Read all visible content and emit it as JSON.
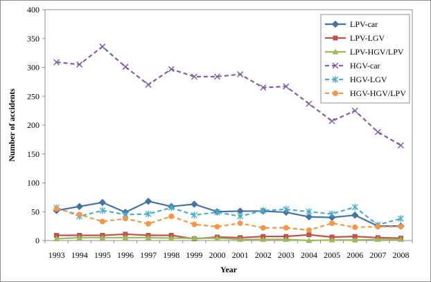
{
  "chart_data": {
    "type": "line",
    "xlabel": "Year",
    "ylabel": "Number of accidents",
    "x": [
      1993,
      1994,
      1995,
      1996,
      1997,
      1998,
      1999,
      2000,
      2001,
      2002,
      2003,
      2004,
      2005,
      2006,
      2007,
      2008
    ],
    "ylim": [
      0,
      400
    ],
    "yticks": [
      0,
      50,
      100,
      150,
      200,
      250,
      300,
      350,
      400
    ],
    "grid": false,
    "legend_position": "top-right",
    "series": [
      {
        "name": "LPV-car",
        "color": "#4472a4",
        "marker": "diamond",
        "dashed": false,
        "values": [
          52,
          59,
          66,
          49,
          68,
          59,
          63,
          50,
          51,
          51,
          49,
          41,
          40,
          44,
          25,
          25
        ]
      },
      {
        "name": "LPV-LGV",
        "color": "#c0504d",
        "marker": "square",
        "dashed": false,
        "values": [
          9,
          9,
          9,
          11,
          9,
          9,
          3,
          6,
          5,
          7,
          7,
          10,
          6,
          7,
          5,
          4
        ]
      },
      {
        "name": "LPV-HGV/LPV",
        "color": "#9bbb59",
        "marker": "triangle",
        "dashed": false,
        "values": [
          3,
          5,
          5,
          5,
          5,
          4,
          4,
          4,
          2,
          2,
          2,
          0,
          1,
          1,
          2,
          2
        ]
      },
      {
        "name": "HGV-car",
        "color": "#7f5fa2",
        "marker": "x",
        "dashed": true,
        "values": [
          309,
          305,
          336,
          301,
          270,
          297,
          284,
          284,
          288,
          265,
          267,
          237,
          207,
          225,
          188,
          165
        ]
      },
      {
        "name": "HGV-LGV",
        "color": "#4bacc6",
        "marker": "star",
        "dashed": true,
        "values": [
          57,
          42,
          52,
          45,
          46,
          57,
          44,
          49,
          42,
          52,
          54,
          50,
          46,
          58,
          27,
          38
        ]
      },
      {
        "name": "HGV-HGV/LPV",
        "color": "#f79646",
        "marker": "circle",
        "dashed": true,
        "values": [
          55,
          45,
          33,
          38,
          29,
          42,
          28,
          24,
          30,
          22,
          22,
          18,
          30,
          23,
          24,
          24
        ]
      }
    ]
  }
}
